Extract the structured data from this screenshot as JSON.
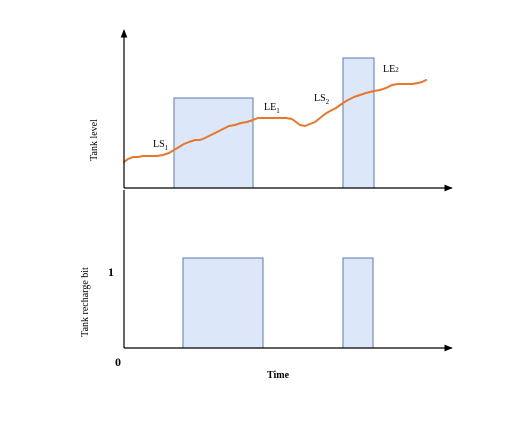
{
  "top_panel": {
    "ylabel": "Tank level",
    "labels": {
      "ls1_main": "LS",
      "ls1_sub": "1",
      "le1_main": "LE",
      "le1_sub": "1",
      "ls2_main": "LS",
      "ls2_sub": "2",
      "le2_main": "LE",
      "le2_sub": "2"
    }
  },
  "bottom_panel": {
    "ylabel": "Tank recharge bit",
    "level_one": "1"
  },
  "xaxis": {
    "origin_label": "0",
    "label": "Time"
  },
  "colors": {
    "box_fill": "#dce8fa",
    "box_stroke": "#5b7bab",
    "curve": "#e8762c",
    "axis": "#000000"
  }
}
